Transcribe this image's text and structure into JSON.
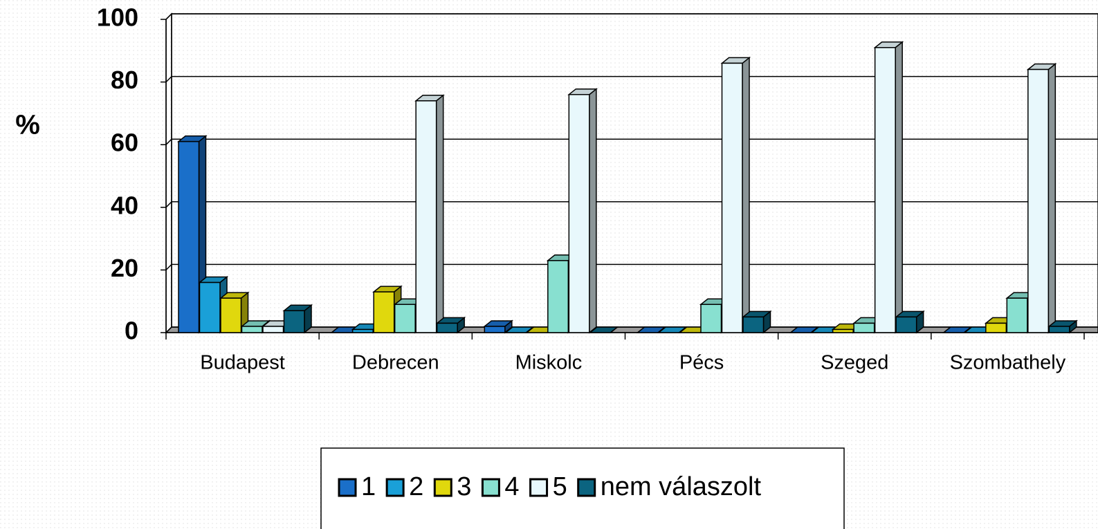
{
  "chart_data": {
    "type": "bar3d",
    "y_label": "%",
    "categories": [
      "Budapest",
      "Debrecen",
      "Miskolc",
      "Pécs",
      "Szeged",
      "Szombathely"
    ],
    "series": [
      {
        "name": "1",
        "color": "#1a6fc9",
        "values": [
          61,
          0,
          2,
          0,
          0,
          0
        ]
      },
      {
        "name": "2",
        "color": "#1aa0d8",
        "values": [
          16,
          1,
          0,
          0,
          0,
          0
        ]
      },
      {
        "name": "3",
        "color": "#e0d80d",
        "values": [
          11,
          13,
          0,
          0,
          1,
          3
        ]
      },
      {
        "name": "4",
        "color": "#88e0d0",
        "values": [
          2,
          9,
          23,
          9,
          3,
          11
        ]
      },
      {
        "name": "5",
        "color": "#e8f8fc",
        "values": [
          2,
          74,
          76,
          86,
          91,
          84
        ]
      },
      {
        "name": "nem válaszolt",
        "color": "#0b6480",
        "values": [
          7,
          3,
          0,
          5,
          5,
          2
        ]
      }
    ],
    "ylim": [
      0,
      100
    ],
    "yticks": [
      0,
      20,
      40,
      60,
      80,
      100
    ],
    "grid": true
  }
}
